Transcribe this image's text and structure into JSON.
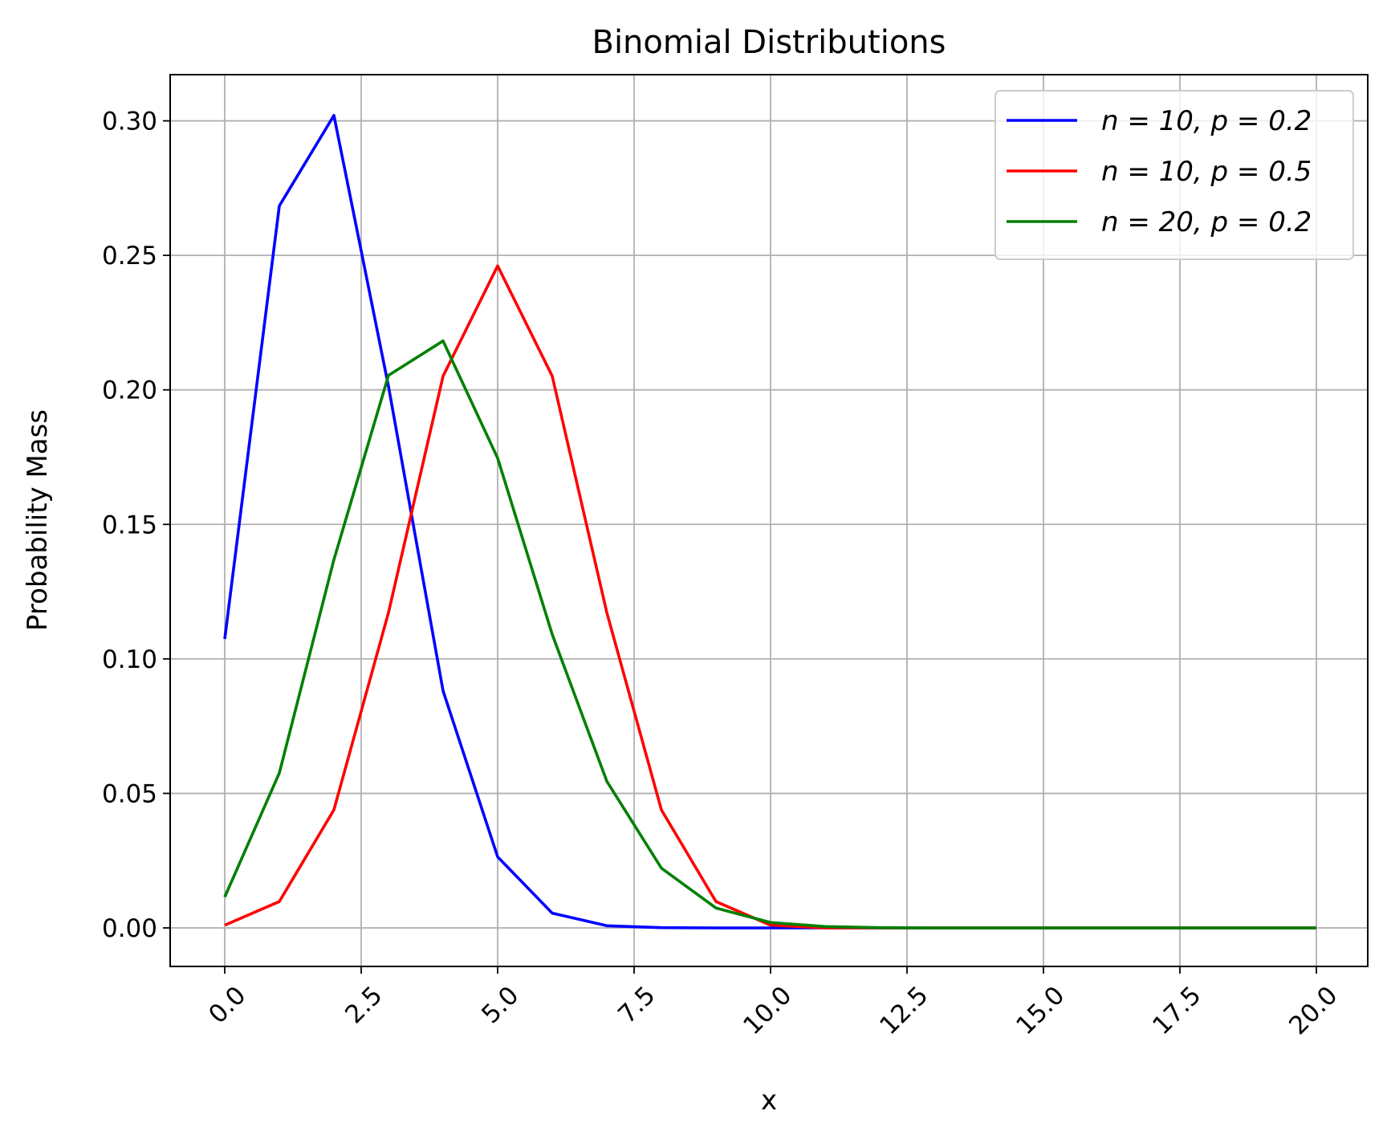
{
  "chart_data": {
    "type": "line",
    "title": "Binomial Distributions",
    "xlabel": "x",
    "ylabel": "Probability Mass",
    "xlim": [
      -1,
      21
    ],
    "ylim": [
      -0.015,
      0.317
    ],
    "xticks": [
      0.0,
      2.5,
      5.0,
      7.5,
      10.0,
      12.5,
      15.0,
      17.5,
      20.0
    ],
    "xtick_labels": [
      "0.0",
      "2.5",
      "5.0",
      "7.5",
      "10.0",
      "12.5",
      "15.0",
      "17.5",
      "20.0"
    ],
    "yticks": [
      0.0,
      0.05,
      0.1,
      0.15,
      0.2,
      0.25,
      0.3
    ],
    "ytick_labels": [
      "0.00",
      "0.05",
      "0.10",
      "0.15",
      "0.20",
      "0.25",
      "0.30"
    ],
    "grid": true,
    "legend_position": "top-right",
    "x": [
      0,
      1,
      2,
      3,
      4,
      5,
      6,
      7,
      8,
      9,
      10,
      11,
      12,
      13,
      14,
      15,
      16,
      17,
      18,
      19,
      20
    ],
    "series": [
      {
        "name": "n = 10, p = 0.2",
        "color": "#0000ff",
        "x": [
          0,
          1,
          2,
          3,
          4,
          5,
          6,
          7,
          8,
          9,
          10,
          11,
          12,
          13,
          14,
          15,
          16,
          17,
          18,
          19,
          20
        ],
        "values": [
          0.1074,
          0.2684,
          0.302,
          0.2013,
          0.0881,
          0.0264,
          0.0055,
          0.0008,
          0.0001,
          0.0,
          0.0,
          0,
          0,
          0,
          0,
          0,
          0,
          0,
          0,
          0,
          0
        ]
      },
      {
        "name": "n = 10, p = 0.5",
        "color": "#ff0000",
        "x": [
          0,
          1,
          2,
          3,
          4,
          5,
          6,
          7,
          8,
          9,
          10,
          11,
          12,
          13,
          14,
          15,
          16,
          17,
          18,
          19,
          20
        ],
        "values": [
          0.001,
          0.0098,
          0.0439,
          0.1172,
          0.2051,
          0.2461,
          0.2051,
          0.1172,
          0.0439,
          0.0098,
          0.001,
          0,
          0,
          0,
          0,
          0,
          0,
          0,
          0,
          0,
          0
        ]
      },
      {
        "name": "n = 20, p = 0.2",
        "color": "#008000",
        "x": [
          0,
          1,
          2,
          3,
          4,
          5,
          6,
          7,
          8,
          9,
          10,
          11,
          12,
          13,
          14,
          15,
          16,
          17,
          18,
          19,
          20
        ],
        "values": [
          0.0115,
          0.0576,
          0.1369,
          0.2054,
          0.2182,
          0.1746,
          0.1091,
          0.0545,
          0.0222,
          0.0074,
          0.002,
          0.0005,
          0.0001,
          0.0,
          0.0,
          0.0,
          0.0,
          0.0,
          0.0,
          0.0,
          0.0
        ]
      }
    ]
  }
}
